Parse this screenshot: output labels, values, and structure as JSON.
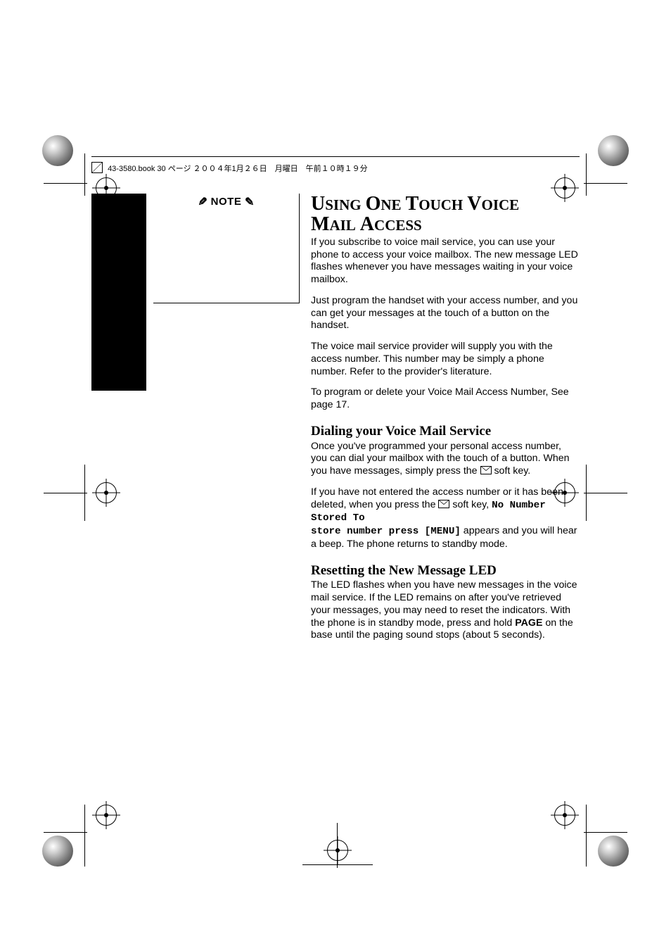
{
  "header": {
    "text": "43-3580.book  30 ページ  ２００４年1月２６日　月曜日　午前１０時１９分"
  },
  "note_label": "NOTE",
  "main": {
    "title_html": "U<small>SING</small> O<small>NE</small> T<small>OUCH</small> V<small>OICE</small> M<small>AIL</small> A<small>CCESS</small>",
    "title_line1": "USING ONE TOUCH VOICE",
    "title_line2": "MAIL ACCESS",
    "p1": "If you subscribe to voice mail service, you can use your phone to access your voice mailbox. The new message LED flashes whenever you have messages waiting in your voice mailbox.",
    "p2": "Just program the handset with your access number, and you can get your messages at the touch of a button on the handset.",
    "p3": "The voice mail service provider will supply you with the access number. This number may be simply a phone number. Refer to the provider's literature.",
    "p4": "To program or delete your Voice Mail Access Number, See page 17.",
    "h2a": "Dialing your Voice Mail Service",
    "p5a": "Once you've programmed your personal access number, you can dial your mailbox with the touch of a button. When you have messages, simply press the ",
    "p5b": " soft key.",
    "p6a": "If you have not entered the access number or it has been deleted, when you press the ",
    "p6b": " soft key, ",
    "p6_lcd1": "No Number Stored To",
    "p6_lcd2": "store number press [MENU]",
    "p6c": " appears and you will hear a beep. The phone returns to standby mode.",
    "h2b": "Resetting the New Message LED",
    "p7a": "The LED flashes when you have new messages in the voice mail service. If the LED remains on after you've retrieved your messages, you may need to reset the indicators. With the phone is in standby mode, press and hold ",
    "p7_bold": "PAGE",
    "p7b": " on the base until the paging sound stops (about 5 seconds)."
  },
  "colors": {
    "text": "#000000",
    "background": "#ffffff",
    "column": "#000000"
  }
}
